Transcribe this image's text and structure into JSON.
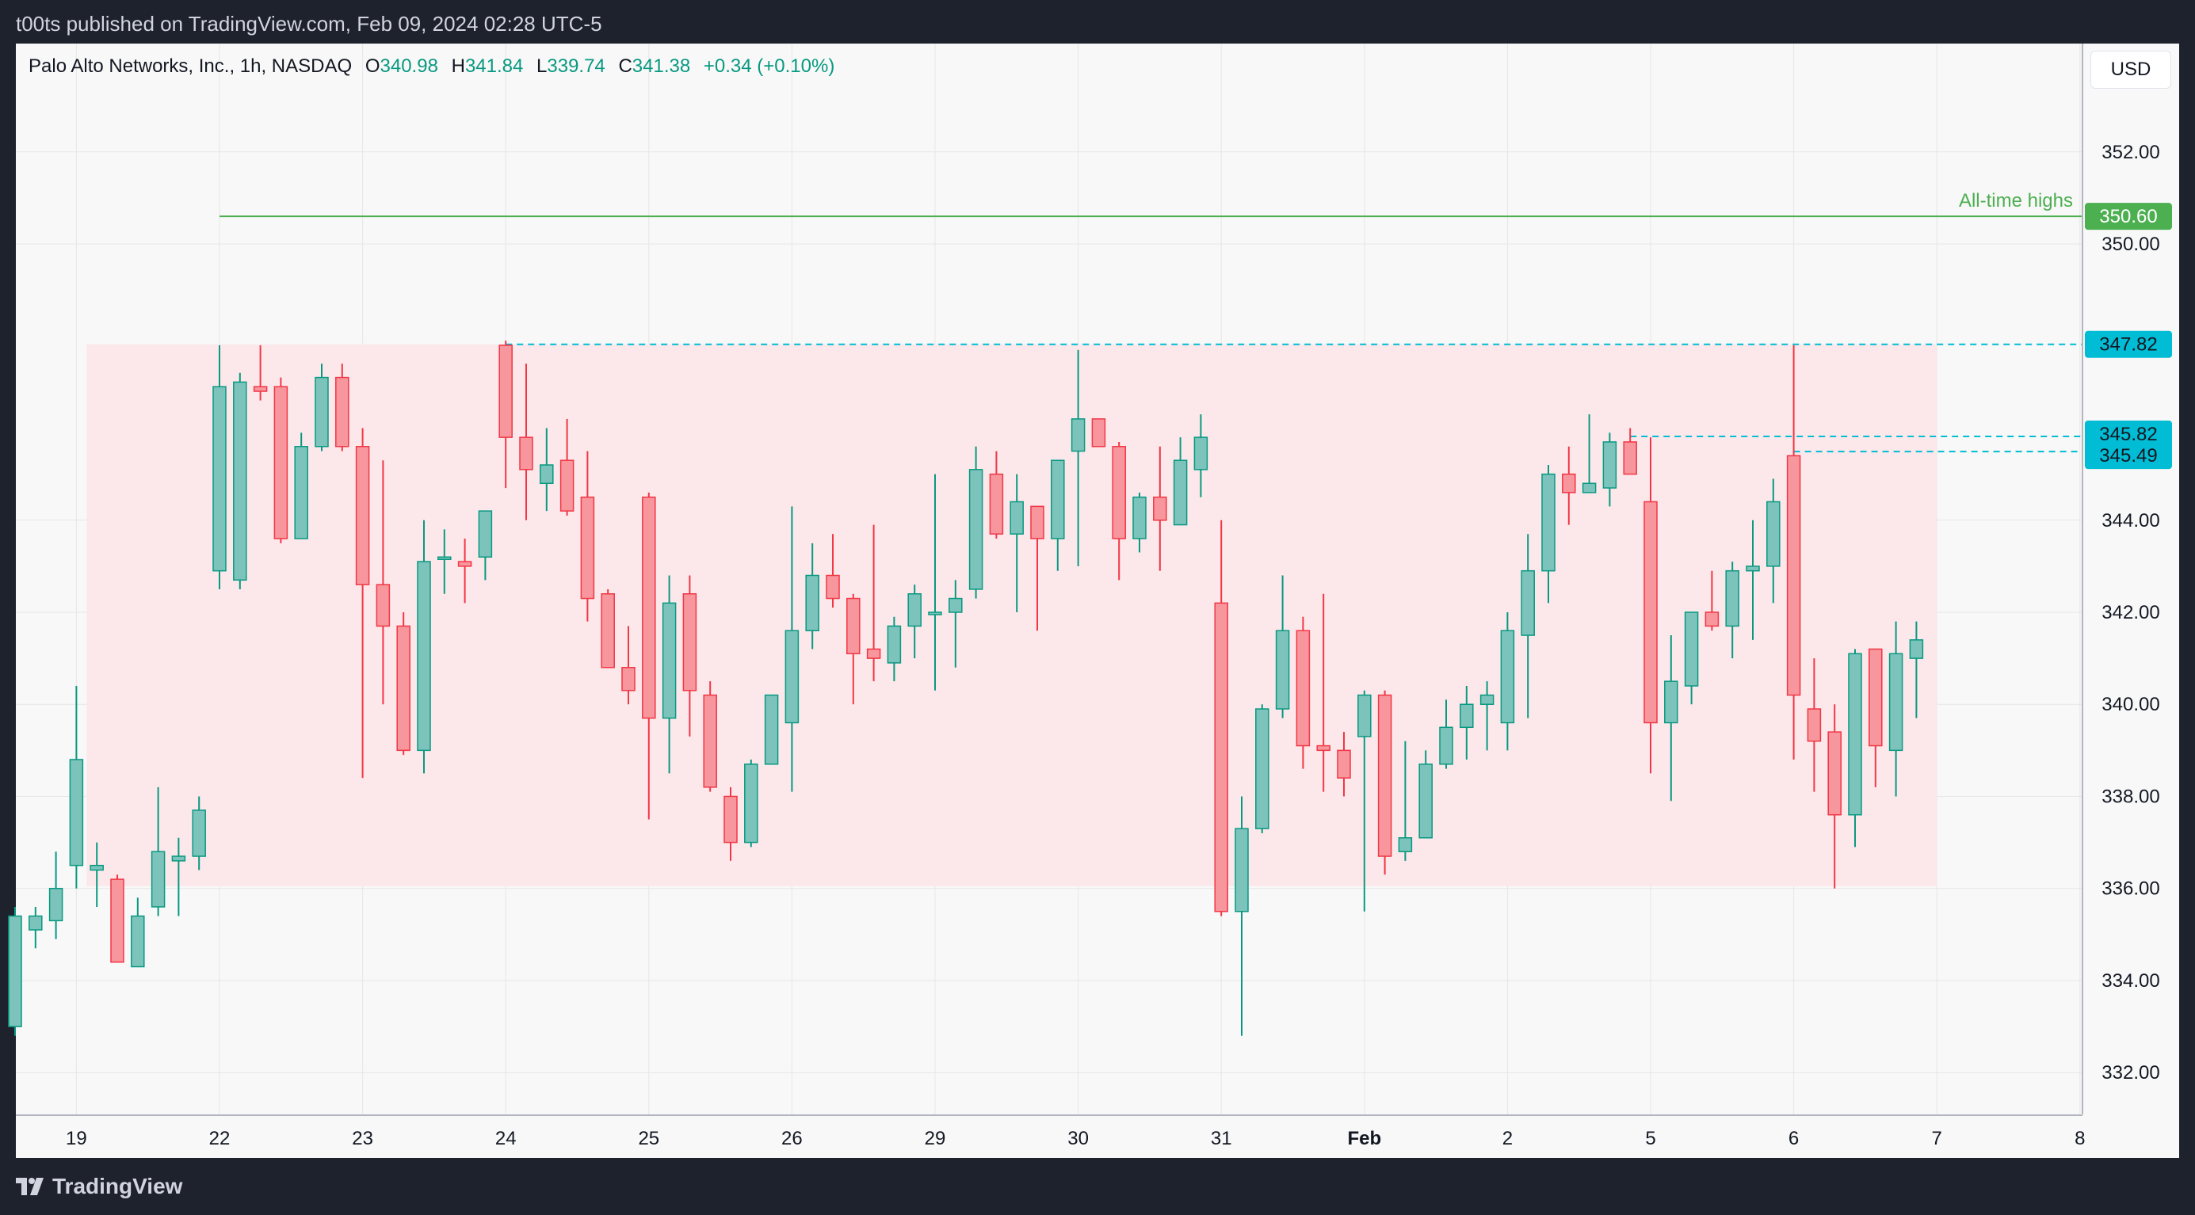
{
  "header": {
    "publish_text": "t00ts published on TradingView.com, Feb 09, 2024 02:28 UTC-5"
  },
  "legend": {
    "symbol": "Palo Alto Networks, Inc., 1h, NASDAQ",
    "o_label": "O",
    "o_value": "340.98",
    "h_label": "H",
    "h_value": "341.84",
    "l_label": "L",
    "l_value": "339.74",
    "c_label": "C",
    "c_value": "341.38",
    "change": "+0.34 (+0.10%)"
  },
  "currency_button": "USD",
  "footer": {
    "brand": "TradingView"
  },
  "colors": {
    "up": "#089981",
    "up_fill": "#7cc4bb",
    "down": "#f23645",
    "down_fill": "#f7969c",
    "ath": "#4caf50",
    "level": "#00bcd4",
    "range": "#fce8ea",
    "grid": "#e6e6e6"
  },
  "chart_data": {
    "type": "candlestick",
    "title": "Palo Alto Networks, Inc., 1h, NASDAQ",
    "xlabel": "",
    "ylabel": "",
    "ylim": [
      331.0,
      353.0
    ],
    "y_ticks": [
      "352.00",
      "350.00",
      "344.00",
      "342.00",
      "340.00",
      "338.00",
      "336.00",
      "334.00",
      "332.00"
    ],
    "x_ticks": [
      {
        "label": "19",
        "idx": 3
      },
      {
        "label": "22",
        "idx": 10
      },
      {
        "label": "23",
        "idx": 17
      },
      {
        "label": "24",
        "idx": 24
      },
      {
        "label": "25",
        "idx": 31
      },
      {
        "label": "26",
        "idx": 38
      },
      {
        "label": "29",
        "idx": 45
      },
      {
        "label": "30",
        "idx": 52
      },
      {
        "label": "31",
        "idx": 59
      },
      {
        "label": "Feb",
        "idx": 66,
        "bold": true
      },
      {
        "label": "2",
        "idx": 73
      },
      {
        "label": "5",
        "idx": 80
      },
      {
        "label": "6",
        "idx": 87
      },
      {
        "label": "7",
        "idx": 94
      },
      {
        "label": "8",
        "idx": 101
      }
    ],
    "candles": [
      [
        333.0,
        335.6,
        332.8,
        335.4
      ],
      [
        335.1,
        335.6,
        334.7,
        335.4
      ],
      [
        335.3,
        336.8,
        334.9,
        336.0
      ],
      [
        336.5,
        340.4,
        336.0,
        338.8
      ],
      [
        336.4,
        337.0,
        335.6,
        336.5
      ],
      [
        336.2,
        336.3,
        334.4,
        334.4
      ],
      [
        334.3,
        335.8,
        334.4,
        335.4
      ],
      [
        335.6,
        338.2,
        335.4,
        336.8
      ],
      [
        336.6,
        337.1,
        335.4,
        336.7
      ],
      [
        336.7,
        338.0,
        336.4,
        337.7
      ],
      [
        342.9,
        347.8,
        342.5,
        346.9
      ],
      [
        342.7,
        347.2,
        342.5,
        347.0
      ],
      [
        346.9,
        347.8,
        346.6,
        346.8
      ],
      [
        346.9,
        347.1,
        343.5,
        343.6
      ],
      [
        343.6,
        345.9,
        343.6,
        345.6
      ],
      [
        345.6,
        347.4,
        345.5,
        347.1
      ],
      [
        347.1,
        347.4,
        345.5,
        345.6
      ],
      [
        345.6,
        346.0,
        338.4,
        342.6
      ],
      [
        342.6,
        345.3,
        340.0,
        341.7
      ],
      [
        341.7,
        342.0,
        338.9,
        339.0
      ],
      [
        339.0,
        344.0,
        338.5,
        343.1
      ],
      [
        343.2,
        343.8,
        342.4,
        343.2
      ],
      [
        343.1,
        343.6,
        342.2,
        343.0
      ],
      [
        343.2,
        344.1,
        342.7,
        344.2
      ],
      [
        347.8,
        347.9,
        344.7,
        345.8
      ],
      [
        345.8,
        347.4,
        344.0,
        345.1
      ],
      [
        344.8,
        346.0,
        344.2,
        345.2
      ],
      [
        345.3,
        346.2,
        344.1,
        344.2
      ],
      [
        344.5,
        345.5,
        341.8,
        342.3
      ],
      [
        342.4,
        342.5,
        340.8,
        340.8
      ],
      [
        340.8,
        341.7,
        340.0,
        340.3
      ],
      [
        344.5,
        344.6,
        337.5,
        339.7
      ],
      [
        339.7,
        342.8,
        338.5,
        342.2
      ],
      [
        342.4,
        342.8,
        339.3,
        340.3
      ],
      [
        340.2,
        340.5,
        338.1,
        338.2
      ],
      [
        338.0,
        338.2,
        336.6,
        337.0
      ],
      [
        337.0,
        338.8,
        336.9,
        338.7
      ],
      [
        338.7,
        340.2,
        338.7,
        340.2
      ],
      [
        339.6,
        344.3,
        338.1,
        341.6
      ],
      [
        341.6,
        343.5,
        341.2,
        342.8
      ],
      [
        342.8,
        343.7,
        342.1,
        342.3
      ],
      [
        342.3,
        342.4,
        340.0,
        341.1
      ],
      [
        341.2,
        343.9,
        340.5,
        341.0
      ],
      [
        340.9,
        341.9,
        340.5,
        341.7
      ],
      [
        341.7,
        342.6,
        341.0,
        342.4
      ],
      [
        342.0,
        345.0,
        340.3,
        342.0
      ],
      [
        342.0,
        342.7,
        340.8,
        342.3
      ],
      [
        342.5,
        345.6,
        342.3,
        345.1
      ],
      [
        345.0,
        345.5,
        343.6,
        343.7
      ],
      [
        343.7,
        345.0,
        342.0,
        344.4
      ],
      [
        344.3,
        344.3,
        341.6,
        343.6
      ],
      [
        343.6,
        345.3,
        342.9,
        345.3
      ],
      [
        345.5,
        347.7,
        343.0,
        346.2
      ],
      [
        346.2,
        346.2,
        345.6,
        345.6
      ],
      [
        345.6,
        345.7,
        342.7,
        343.6
      ],
      [
        343.6,
        344.6,
        343.3,
        344.5
      ],
      [
        344.5,
        345.6,
        342.9,
        344.0
      ],
      [
        343.9,
        345.8,
        343.9,
        345.3
      ],
      [
        345.1,
        346.3,
        344.5,
        345.8
      ],
      [
        342.2,
        344.0,
        335.4,
        335.5
      ],
      [
        335.5,
        338.0,
        332.8,
        337.3
      ],
      [
        337.3,
        340.0,
        337.2,
        339.9
      ],
      [
        339.9,
        342.8,
        339.7,
        341.6
      ],
      [
        341.6,
        341.9,
        338.6,
        339.1
      ],
      [
        339.1,
        342.4,
        338.1,
        339.0
      ],
      [
        339.0,
        339.4,
        338.0,
        338.4
      ],
      [
        339.3,
        340.3,
        335.5,
        340.2
      ],
      [
        340.2,
        340.3,
        336.3,
        336.7
      ],
      [
        336.8,
        339.2,
        336.6,
        337.1
      ],
      [
        337.1,
        339.0,
        337.1,
        338.7
      ],
      [
        338.7,
        340.1,
        338.6,
        339.5
      ],
      [
        339.5,
        340.4,
        338.8,
        340.0
      ],
      [
        340.0,
        340.5,
        339.0,
        340.2
      ],
      [
        339.6,
        342.0,
        339.0,
        341.6
      ],
      [
        341.5,
        343.7,
        339.7,
        342.9
      ],
      [
        342.9,
        345.2,
        342.2,
        345.0
      ],
      [
        345.0,
        345.6,
        343.9,
        344.6
      ],
      [
        344.6,
        346.3,
        344.8,
        344.8
      ],
      [
        344.7,
        345.9,
        344.3,
        345.7
      ],
      [
        345.7,
        346.0,
        345.0,
        345.0
      ],
      [
        344.4,
        345.8,
        338.5,
        339.6
      ],
      [
        339.6,
        341.5,
        337.9,
        340.5
      ],
      [
        340.4,
        342.0,
        340.0,
        342.0
      ],
      [
        342.0,
        342.9,
        341.6,
        341.7
      ],
      [
        341.7,
        343.1,
        341.0,
        342.9
      ],
      [
        342.9,
        344.0,
        341.4,
        343.0
      ],
      [
        343.0,
        344.9,
        342.2,
        344.4
      ],
      [
        345.4,
        347.8,
        338.8,
        340.2
      ],
      [
        339.9,
        341.0,
        338.1,
        339.2
      ],
      [
        339.4,
        340.0,
        336.0,
        337.6
      ],
      [
        337.6,
        341.2,
        336.9,
        341.1
      ],
      [
        341.2,
        341.1,
        338.2,
        339.1
      ],
      [
        339.0,
        341.8,
        338.0,
        341.1
      ],
      [
        341.0,
        341.8,
        339.7,
        341.4
      ]
    ],
    "range_box": {
      "from_idx": 3.5,
      "to_idx": 94,
      "low": 336.05,
      "high": 347.82
    },
    "price_labels": [
      {
        "text": "350.60",
        "kind": "ath",
        "price": 350.6,
        "from_idx": 10
      },
      {
        "text": "347.82",
        "kind": "level",
        "price": 347.82,
        "from_idx": 24
      },
      {
        "text": "345.82",
        "kind": "level",
        "price": 345.82,
        "from_idx": 79
      },
      {
        "text": "345.49",
        "kind": "level",
        "price": 345.49,
        "from_idx": 87
      }
    ],
    "annotation": "All-time highs"
  }
}
